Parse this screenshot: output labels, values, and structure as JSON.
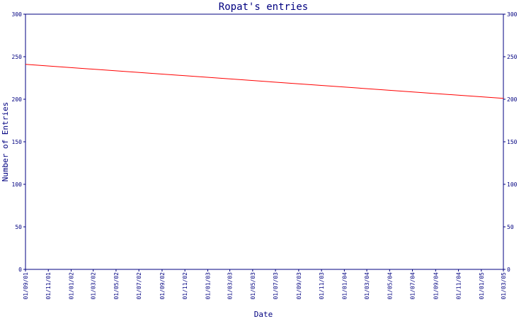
{
  "chart_data": {
    "type": "line",
    "title": "Ropat's entries",
    "xlabel": "Date",
    "ylabel": "Number of Entries",
    "ylim": [
      0,
      300
    ],
    "y_ticks": [
      0,
      50,
      100,
      150,
      200,
      250,
      300
    ],
    "x_ticks": [
      "01/09/01",
      "01/11/01",
      "01/01/02",
      "01/03/02",
      "01/05/02",
      "01/07/02",
      "01/09/02",
      "01/11/02",
      "01/01/03",
      "01/03/03",
      "01/05/03",
      "01/07/03",
      "01/09/03",
      "01/11/03",
      "01/01/04",
      "01/03/04",
      "01/05/04",
      "01/07/04",
      "01/09/04",
      "01/11/04",
      "01/01/05",
      "01/03/05"
    ],
    "series": [
      {
        "points": [
          {
            "x": "01/09/01",
            "y": 241
          },
          {
            "x": "01/03/05",
            "y": 201
          }
        ],
        "color": "#ff0000"
      }
    ],
    "grid": false,
    "axis_color": "#000080"
  }
}
